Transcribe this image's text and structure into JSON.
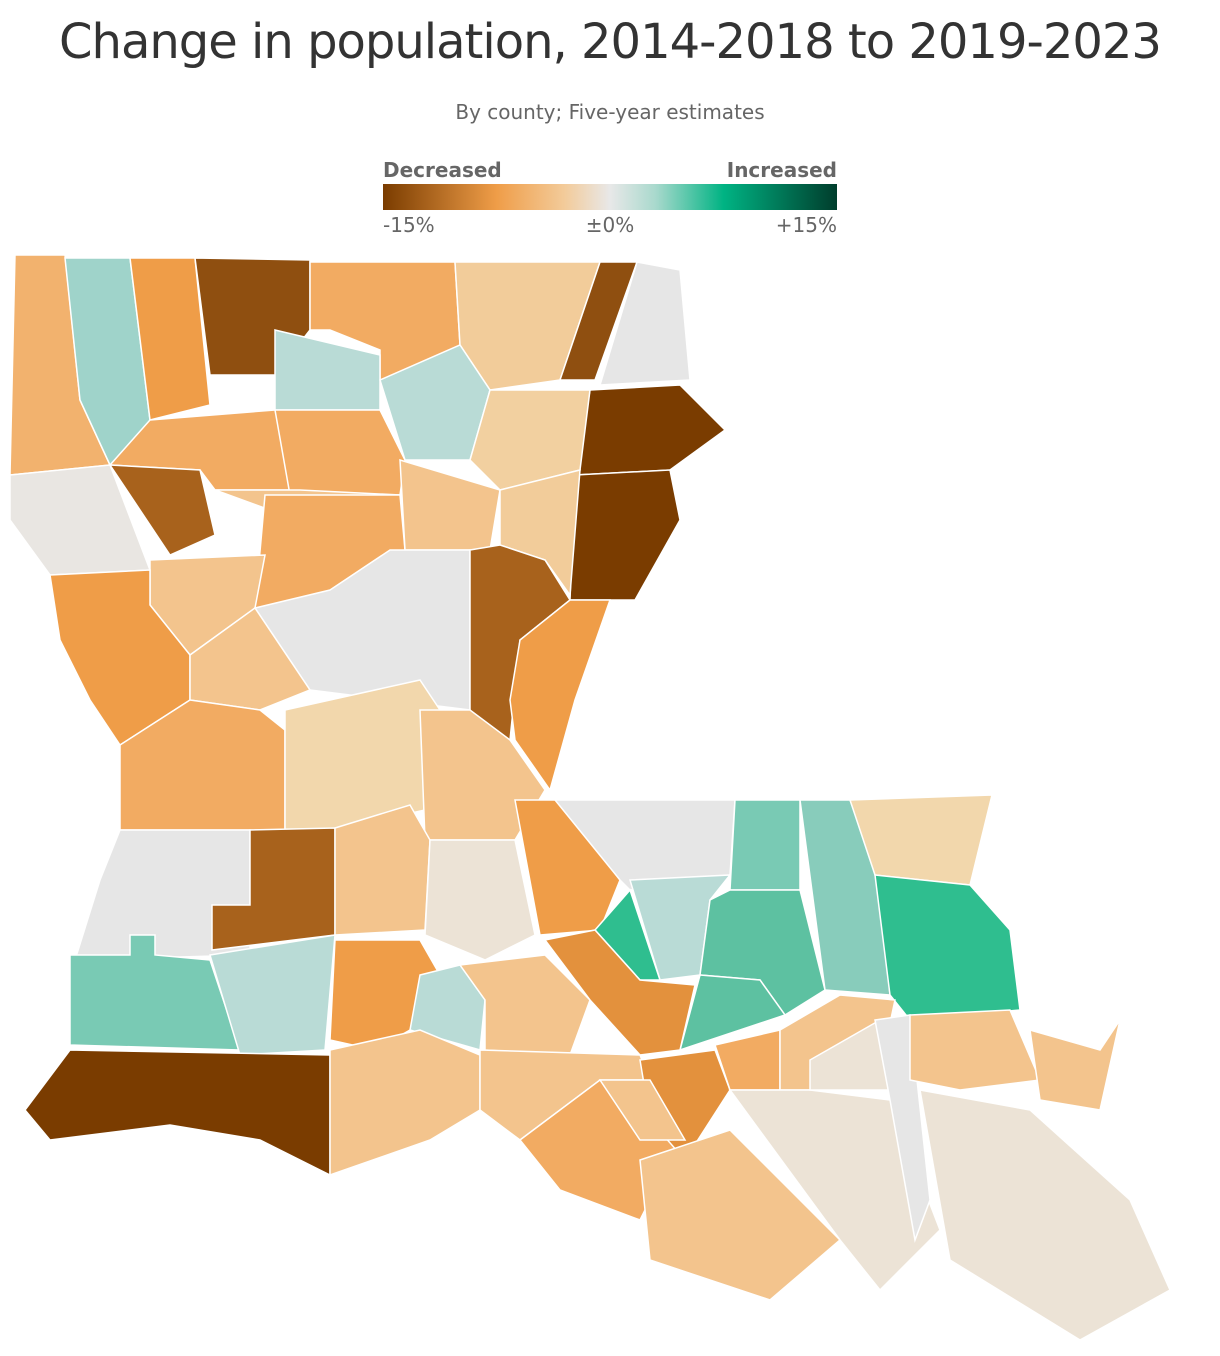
{
  "header": {
    "title": "Change in population, 2014-2018 to 2019-2023",
    "subtitle": "By county; Five-year estimates"
  },
  "legend": {
    "low_label": "Decreased",
    "high_label": "Increased",
    "range": [
      -15,
      15
    ],
    "ticks": [
      {
        "value": -15,
        "label": "-15%"
      },
      {
        "value": 0,
        "label": "±0%"
      },
      {
        "value": 15,
        "label": "+15%"
      }
    ]
  }
}
